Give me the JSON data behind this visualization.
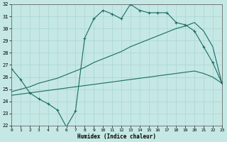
{
  "bg_color": "#c5e8e5",
  "grid_color": "#a8d5d2",
  "line_color": "#1a6b60",
  "xlabel": "Humidex (Indice chaleur)",
  "ylim": [
    22,
    32
  ],
  "xlim": [
    0,
    23
  ],
  "yticks": [
    22,
    23,
    24,
    25,
    26,
    27,
    28,
    29,
    30,
    31,
    32
  ],
  "xticks": [
    0,
    1,
    2,
    3,
    4,
    5,
    6,
    7,
    8,
    9,
    10,
    11,
    12,
    13,
    14,
    15,
    16,
    17,
    18,
    19,
    20,
    21,
    22,
    23
  ],
  "line_jagged_x": [
    0,
    1,
    2,
    3,
    4,
    5,
    6,
    7,
    8,
    9,
    10,
    11,
    12,
    13,
    14,
    15,
    16,
    17,
    18,
    19,
    20,
    21,
    22,
    23
  ],
  "line_jagged_y": [
    26.7,
    25.8,
    24.7,
    24.2,
    23.8,
    23.3,
    21.9,
    23.2,
    29.2,
    30.8,
    31.5,
    31.2,
    30.8,
    32.0,
    31.5,
    31.3,
    31.3,
    31.3,
    30.5,
    30.3,
    29.8,
    28.5,
    27.2,
    25.5
  ],
  "line_upper_x": [
    0,
    1,
    2,
    3,
    4,
    5,
    6,
    7,
    8,
    9,
    10,
    11,
    12,
    13,
    14,
    15,
    16,
    17,
    18,
    19,
    20,
    21,
    22,
    23
  ],
  "line_upper_y": [
    24.8,
    25.0,
    25.2,
    25.5,
    25.7,
    25.9,
    26.2,
    26.5,
    26.8,
    27.2,
    27.5,
    27.8,
    28.1,
    28.5,
    28.8,
    29.1,
    29.4,
    29.7,
    30.0,
    30.2,
    30.5,
    29.8,
    28.5,
    25.5
  ],
  "line_lower_x": [
    0,
    1,
    2,
    3,
    4,
    5,
    6,
    7,
    8,
    9,
    10,
    11,
    12,
    13,
    14,
    15,
    16,
    17,
    18,
    19,
    20,
    21,
    22,
    23
  ],
  "line_lower_y": [
    24.5,
    24.6,
    24.7,
    24.8,
    24.9,
    25.0,
    25.1,
    25.2,
    25.3,
    25.4,
    25.5,
    25.6,
    25.7,
    25.8,
    25.9,
    26.0,
    26.1,
    26.2,
    26.3,
    26.4,
    26.5,
    26.3,
    26.0,
    25.5
  ]
}
